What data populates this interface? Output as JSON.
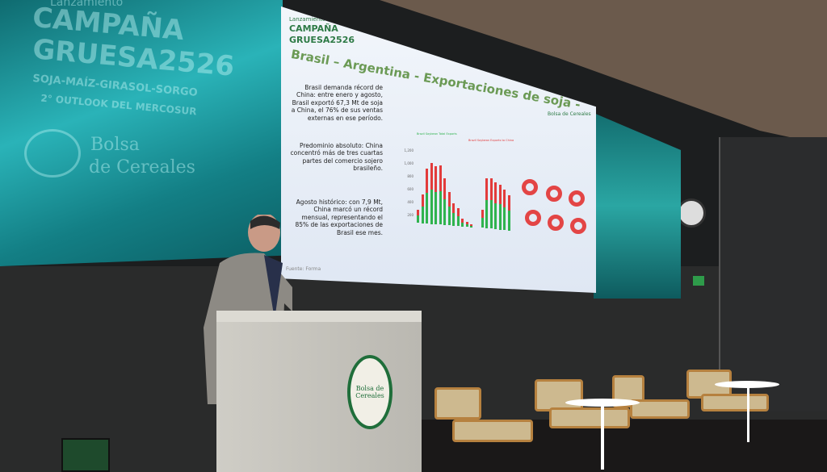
{
  "left_screen": {
    "kicker": "Lanzamiento",
    "title_line1": "CAMPAÑA",
    "title_line2": "GRUESA2526",
    "crops": "SOJA-MAÍZ-GIRASOL-SORGO",
    "badge": "2° OUTLOOK DEL MERCOSUR",
    "logo_text_1": "Bolsa",
    "logo_text_2": "de Cereales"
  },
  "slide": {
    "kicker": "Lanzamiento",
    "title_line1": "CAMPAÑA",
    "title_line2": "GRUESA2526",
    "crops": "SOJA-MAÍZ-GIRASOL-SORGO",
    "badge": "2° OUTLOOK DEL MERCOSUR",
    "heading": "Brasil – Argentina - Exportaciones de soja -",
    "bullets": [
      "Brasil demanda récord de China: entre enero y agosto, Brasil exportó 67,3 Mt de soja a China, el 76% de sus ventas externas en ese período.",
      "Predominio absoluto: China concentró más de tres cuartas partes del comercio sojero brasileño.",
      "Agosto histórico: con 7,9 Mt, China marcó un récord mensual, representando el 85% de las exportaciones de Brasil ese mes."
    ],
    "source": "Fuente: Forma",
    "logo": "Bolsa de Cereales",
    "chart_legend": [
      "Brazil Soybean Total Exports",
      "Brazil Soybean Exports to China"
    ],
    "chart_yticks": [
      "1,200",
      "1,000",
      "800",
      "600",
      "400",
      "200"
    ],
    "colors": {
      "total": "#e23b3b",
      "china": "#2fb34e"
    }
  },
  "podium": {
    "seal_text": "Bolsa de Cereales"
  }
}
